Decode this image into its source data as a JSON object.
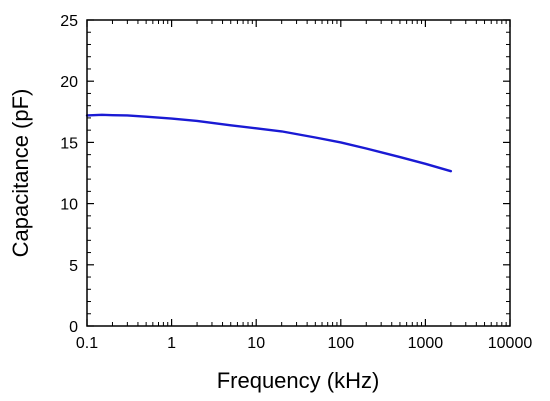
{
  "chart_data": {
    "type": "line",
    "xlabel": "Frequency (kHz)",
    "ylabel": "Capacitance (pF)",
    "xscale": "log",
    "xlim": [
      0.1,
      10000
    ],
    "ylim": [
      0,
      25
    ],
    "x_ticks": [
      0.1,
      1,
      10,
      100,
      1000,
      10000
    ],
    "x_tick_labels": [
      "0.1",
      "1",
      "10",
      "100",
      "1000",
      "10000"
    ],
    "y_ticks": [
      0,
      5,
      10,
      15,
      20,
      25
    ],
    "y_tick_labels": [
      "0",
      "5",
      "10",
      "15",
      "20",
      "25"
    ],
    "grid": false,
    "series": [
      {
        "color": "#1a1ad4",
        "x": [
          0.1,
          0.15,
          0.2,
          0.3,
          0.5,
          1,
          2,
          5,
          10,
          20,
          50,
          100,
          200,
          500,
          1000,
          2000
        ],
        "y": [
          17.2,
          17.25,
          17.22,
          17.2,
          17.1,
          16.95,
          16.75,
          16.4,
          16.15,
          15.9,
          15.4,
          15.0,
          14.5,
          13.8,
          13.25,
          12.65
        ]
      }
    ]
  }
}
